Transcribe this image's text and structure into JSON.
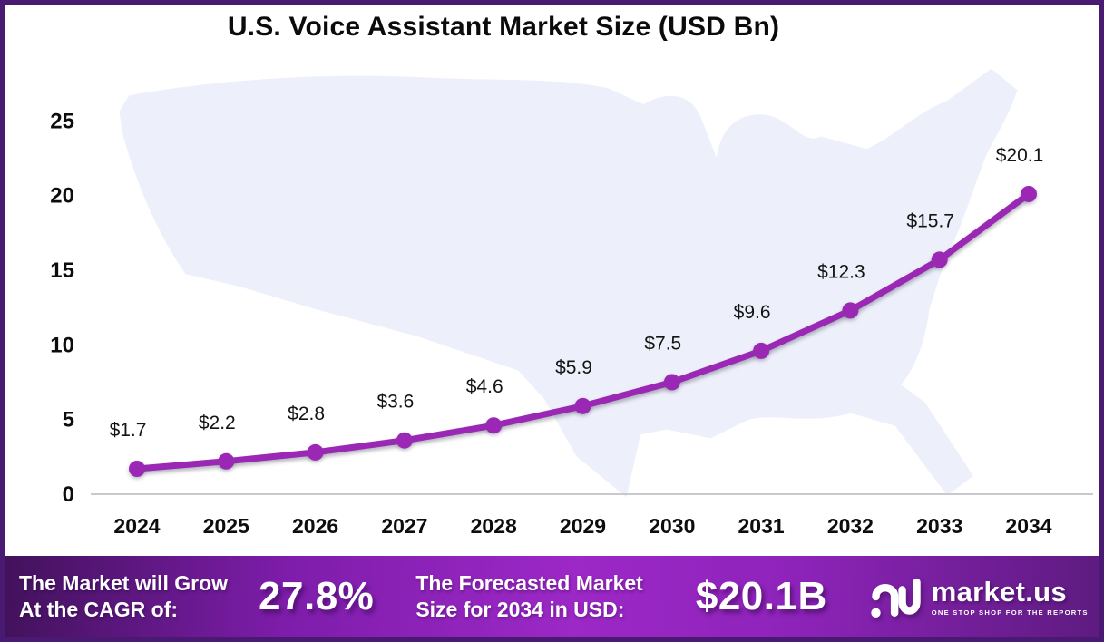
{
  "title": "U.S. Voice Assistant Market Size (USD Bn)",
  "chart_data": {
    "type": "line",
    "title": "U.S. Voice Assistant Market Size (USD Bn)",
    "x": [
      "2024",
      "2025",
      "2026",
      "2027",
      "2028",
      "2029",
      "2030",
      "2031",
      "2032",
      "2033",
      "2034"
    ],
    "values": [
      1.7,
      2.2,
      2.8,
      3.6,
      4.6,
      5.9,
      7.5,
      9.6,
      12.3,
      15.7,
      20.1
    ],
    "point_labels": [
      "$1.7",
      "$2.2",
      "$2.8",
      "$3.6",
      "$4.6",
      "$5.9",
      "$7.5",
      "$9.6",
      "$12.3",
      "$15.7",
      "$20.1"
    ],
    "xlabel": "",
    "ylabel": "",
    "ylim": [
      0,
      25
    ],
    "yticks": [
      0,
      5,
      10,
      15,
      20,
      25
    ],
    "grid": false,
    "legend_position": "none",
    "line_color": "#9a28b5",
    "marker_color": "#9a28b5",
    "background": "us-map-silhouette"
  },
  "footer": {
    "cagr_line1": "The Market will Grow",
    "cagr_line2": "At the CAGR of:",
    "cagr_value": "27.8%",
    "forecast_line1": "The Forecasted Market",
    "forecast_line2": "Size for 2034 in USD:",
    "forecast_value": "$20.1B",
    "logo_name": "market.us",
    "logo_tagline": "ONE STOP SHOP FOR THE REPORTS"
  },
  "icons": {
    "logo_icon": "market-us-monogram"
  },
  "colors": {
    "accent_purple": "#9a28b5",
    "border_purple": "#4a1a72",
    "footer_gradient_start": "#42125c",
    "footer_gradient_mid": "#9c28c6",
    "footer_gradient_end": "#5e1b80",
    "map_fill": "#edeffa",
    "x_axis_line": "#c9c9cd",
    "y_axis_line": "#ffffff",
    "text_on_footer": "#ffffff"
  }
}
